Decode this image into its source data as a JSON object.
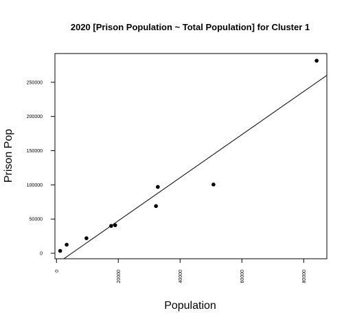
{
  "chart_data": {
    "type": "scatter",
    "title": "2020 [Prison Population ~ Total Population] for Cluster 1",
    "xlabel": "Population",
    "ylabel": "Prison Pop",
    "xlim": [
      -500,
      87500
    ],
    "ylim": [
      -8000,
      292000
    ],
    "x_ticks": [
      {
        "value": 0,
        "label": "0"
      },
      {
        "value": 20000,
        "label": "20000"
      },
      {
        "value": 40000,
        "label": "40000"
      },
      {
        "value": 60000,
        "label": "60000"
      },
      {
        "value": 80000,
        "label": "80000"
      }
    ],
    "y_ticks": [
      {
        "value": 0,
        "label": "0"
      },
      {
        "value": 50000,
        "label": "50000"
      },
      {
        "value": 100000,
        "label": "100000"
      },
      {
        "value": 150000,
        "label": "150000"
      },
      {
        "value": 200000,
        "label": "200000"
      },
      {
        "value": 250000,
        "label": "250000"
      }
    ],
    "points": [
      {
        "x": 1200,
        "y": 3500
      },
      {
        "x": 3300,
        "y": 12500
      },
      {
        "x": 9700,
        "y": 22000
      },
      {
        "x": 17700,
        "y": 40000
      },
      {
        "x": 19000,
        "y": 41000
      },
      {
        "x": 32200,
        "y": 69000
      },
      {
        "x": 32800,
        "y": 97000
      },
      {
        "x": 50800,
        "y": 100500
      },
      {
        "x": 84200,
        "y": 281500
      }
    ],
    "regression_line": {
      "intercept": -15500,
      "slope": 3.15
    },
    "grid": false
  }
}
